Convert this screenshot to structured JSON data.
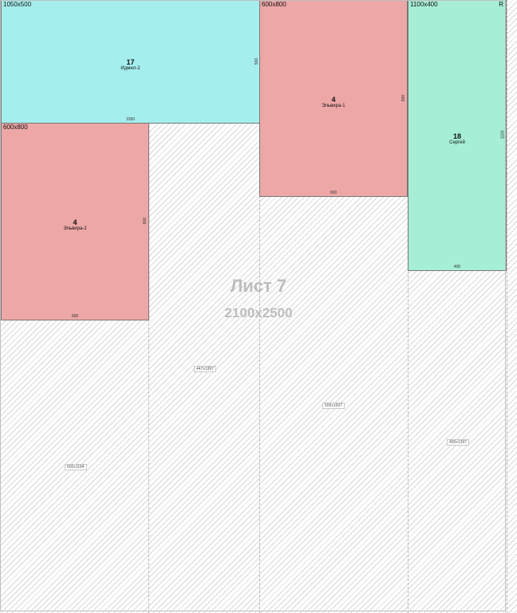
{
  "sheet": {
    "title": "Лист 7",
    "size": "2100x2500"
  },
  "parts": [
    {
      "size_label": "1050x500",
      "number": "17",
      "owner": "Идмил-2",
      "width_dim": "1050",
      "height_dim": "500",
      "color": "#a5eeee"
    },
    {
      "size_label": "600x800",
      "number": "4",
      "owner": "Эльвира-1",
      "width_dim": "600",
      "height_dim": "800",
      "color": "#eea7a7"
    },
    {
      "size_label": "1100x400",
      "number": "18",
      "owner": "Сергей",
      "width_dim": "400",
      "height_dim": "1100",
      "color": "#a6eed6",
      "rotated_mark": "R"
    },
    {
      "size_label": "600x800",
      "number": "4",
      "owner": "Эльвира-2",
      "width_dim": "600",
      "height_dim": "800",
      "color": "#eea7a7"
    }
  ],
  "waste": [
    {
      "label": "600x1184"
    },
    {
      "label": "447x1997"
    },
    {
      "label": "600x1697"
    },
    {
      "label": "400x1397"
    }
  ]
}
